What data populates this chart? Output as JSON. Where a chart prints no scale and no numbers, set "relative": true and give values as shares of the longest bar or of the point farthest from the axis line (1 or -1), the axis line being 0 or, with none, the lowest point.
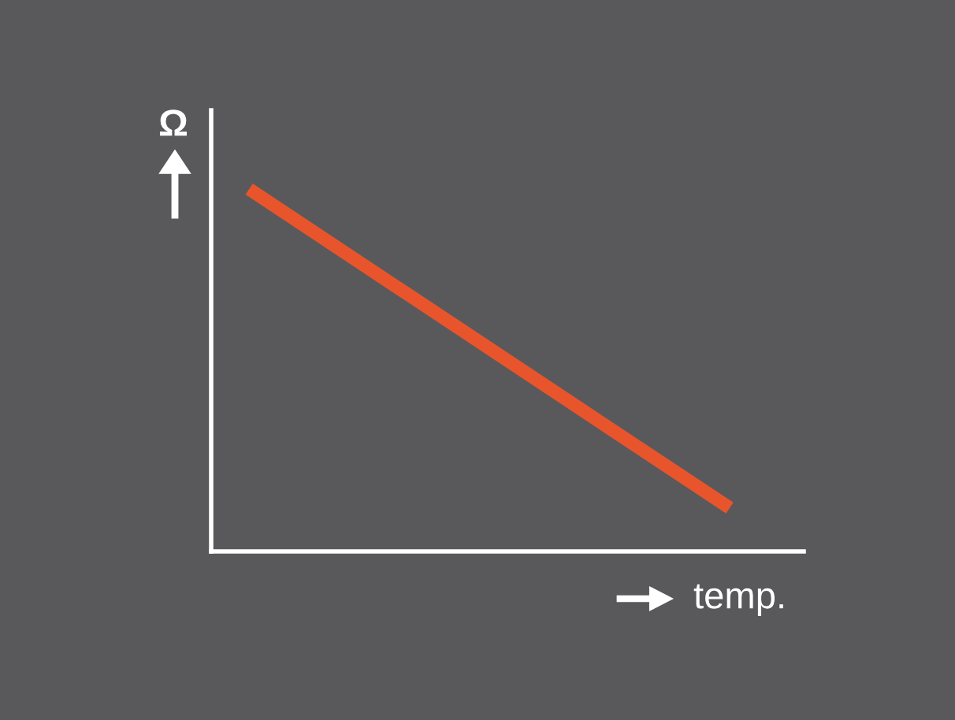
{
  "chart_data": {
    "type": "line",
    "relative": true,
    "xlabel": "temp.",
    "ylabel": "Ω",
    "categories": [
      null,
      null
    ],
    "series": [
      {
        "color": "#e8552c",
        "values": [
          1,
          0.12
        ]
      }
    ],
    "grid": false,
    "legend": false,
    "marker": "none",
    "line_style": "solid"
  }
}
